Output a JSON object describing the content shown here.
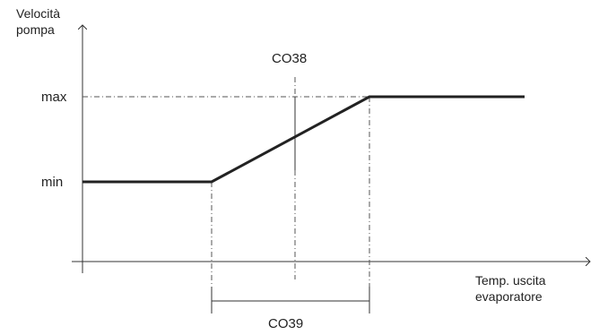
{
  "diagram": {
    "y_axis_label_line1": "Velocità",
    "y_axis_label_line2": "pompa",
    "x_axis_label_line1": "Temp. uscita",
    "x_axis_label_line2": "evaporatore",
    "level_max": "max",
    "level_min": "min",
    "setpoint_label": "CO38",
    "band_label": "CO39",
    "colors": {
      "curve": "#222222",
      "axis": "#333333",
      "guide": "#555555"
    }
  }
}
